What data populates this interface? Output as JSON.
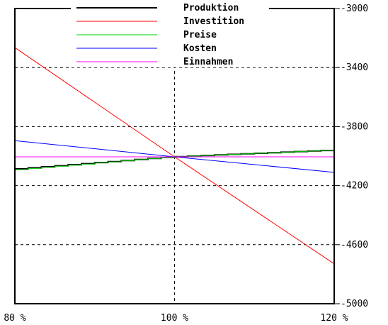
{
  "chart_data": {
    "type": "line",
    "title": "",
    "xlabel": "",
    "ylabel": "",
    "x_ticks": [
      "80 %",
      "100 %",
      "120 %"
    ],
    "y_ticks": [
      "-3000",
      "-3400",
      "-3800",
      "-4200",
      "-4600",
      "-5000"
    ],
    "xlim": [
      80,
      120
    ],
    "ylim": [
      -5000,
      -3000
    ],
    "y_axis_position": "right",
    "grid": "dashed at ticks",
    "legend_position": "top",
    "series": [
      {
        "name": "Produktion",
        "color": "#000000",
        "x": [
          80,
          100,
          120
        ],
        "y": [
          -4090,
          -4005,
          -3960
        ],
        "step": true
      },
      {
        "name": "Investition",
        "color": "#ff0000",
        "x": [
          80,
          100,
          120
        ],
        "y": [
          -3265,
          -4005,
          -4730
        ]
      },
      {
        "name": "Preise",
        "color": "#00cc00",
        "x": [
          80,
          100,
          120
        ],
        "y": [
          -4095,
          -4005,
          -3960
        ],
        "step": true
      },
      {
        "name": "Kosten",
        "color": "#0000ff",
        "x": [
          80,
          100,
          120
        ],
        "y": [
          -3895,
          -4005,
          -4110
        ]
      },
      {
        "name": "Einnahmen",
        "color": "#ff00ff",
        "x": [
          80,
          100,
          120
        ],
        "y": [
          -4005,
          -4005,
          -4005
        ]
      }
    ]
  }
}
